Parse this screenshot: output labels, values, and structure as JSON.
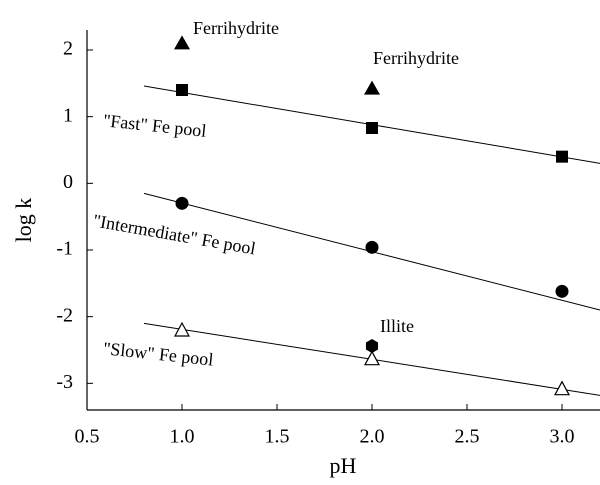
{
  "chart_data": {
    "type": "scatter",
    "x_label": "pH",
    "y_label": "log k",
    "xlim": [
      0.5,
      3.2
    ],
    "ylim": [
      -3.4,
      2.3
    ],
    "xticks": [
      0.5,
      {
        "value": 1,
        "label": "1.0"
      },
      1.5,
      {
        "value": 2,
        "label": "2.0"
      },
      2.5,
      {
        "value": 3,
        "label": "3.0"
      }
    ],
    "yticks": [
      -3,
      -2,
      -1,
      0,
      1,
      2
    ],
    "series": [
      {
        "marker": "square",
        "color": "#000000",
        "x": [
          1,
          2,
          3
        ],
        "values": [
          1.4,
          0.83,
          0.4
        ]
      },
      {
        "marker": "triangle",
        "color": "#000000",
        "x": [
          1,
          2
        ],
        "values": [
          2.1,
          1.42
        ]
      },
      {
        "marker": "circle",
        "color": "#000000",
        "x": [
          1,
          2,
          3
        ],
        "values": [
          -0.3,
          -0.96,
          -1.62
        ]
      },
      {
        "marker": "triangle-open",
        "color": "#000000",
        "x": [
          1,
          2,
          3
        ],
        "values": [
          -2.2,
          -2.63,
          -3.08
        ]
      },
      {
        "marker": "hexagon",
        "color": "#000000",
        "x": [
          2
        ],
        "values": [
          -2.44
        ]
      }
    ],
    "fit_lines": [
      {
        "color": "#000000",
        "x": [
          0.8,
          3.2
        ],
        "values": [
          1.46,
          0.3
        ]
      },
      {
        "color": "#000000",
        "x": [
          0.8,
          3.2
        ],
        "values": [
          -0.15,
          -1.9
        ]
      },
      {
        "color": "#000000",
        "x": [
          0.8,
          3.2
        ],
        "values": [
          -2.1,
          -3.18
        ]
      }
    ],
    "annotations": [
      "Ferrihydrite",
      "Ferrihydrite",
      "\"Fast\" Fe pool",
      "\"Intermediate\" Fe pool",
      "\"Slow\" Fe pool",
      "Illite"
    ]
  }
}
